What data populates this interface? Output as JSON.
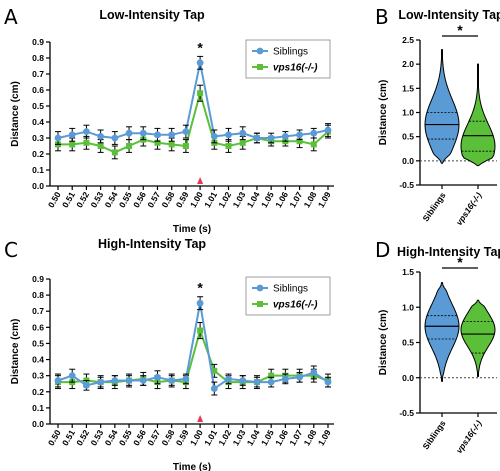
{
  "colors": {
    "siblings": "#5b9bd5",
    "mutant": "#5bbf3a",
    "marker": "#e8384f"
  },
  "chart_data": [
    {
      "panel": "A",
      "type": "line",
      "title": "Low-Intensity Tap",
      "xlabel": "Time (s)",
      "ylabel": "Distance (cm)",
      "ylim": [
        0,
        0.9
      ],
      "yticks": [
        "0.0",
        "0.1",
        "0.2",
        "0.3",
        "0.4",
        "0.5",
        "0.6",
        "0.7",
        "0.8",
        "0.9"
      ],
      "categories": [
        "0.50",
        "0.51",
        "0.52",
        "0.53",
        "0.54",
        "0.55",
        "0.56",
        "0.57",
        "0.58",
        "0.59",
        "1.00",
        "1.01",
        "1.02",
        "1.03",
        "1.04",
        "1.05",
        "1.06",
        "1.07",
        "1.08",
        "1.09"
      ],
      "series": [
        {
          "name": "Siblings",
          "values": [
            0.3,
            0.32,
            0.34,
            0.31,
            0.3,
            0.33,
            0.33,
            0.32,
            0.32,
            0.34,
            0.77,
            0.31,
            0.32,
            0.33,
            0.3,
            0.3,
            0.31,
            0.32,
            0.33,
            0.35
          ],
          "errors": [
            0.04,
            0.04,
            0.04,
            0.04,
            0.04,
            0.04,
            0.04,
            0.04,
            0.04,
            0.04,
            0.04,
            0.04,
            0.04,
            0.04,
            0.03,
            0.03,
            0.03,
            0.03,
            0.03,
            0.04
          ]
        },
        {
          "name": "vps16(-/-)",
          "values": [
            0.26,
            0.26,
            0.27,
            0.25,
            0.21,
            0.25,
            0.29,
            0.27,
            0.26,
            0.25,
            0.58,
            0.27,
            0.25,
            0.27,
            0.3,
            0.28,
            0.28,
            0.28,
            0.26,
            0.34
          ],
          "errors": [
            0.04,
            0.04,
            0.04,
            0.04,
            0.04,
            0.04,
            0.04,
            0.04,
            0.04,
            0.04,
            0.05,
            0.04,
            0.04,
            0.04,
            0.03,
            0.03,
            0.03,
            0.04,
            0.04,
            0.04
          ]
        }
      ],
      "annotation": "*",
      "grid": false,
      "legend_position": "top-right"
    },
    {
      "panel": "B",
      "type": "violin",
      "title": "Low-Intensity Tap",
      "ylabel": "Distance (cm)",
      "ylim": [
        -0.5,
        2.5
      ],
      "yticks": [
        "-0.5",
        "0.0",
        "0.5",
        "1.0",
        "1.5",
        "2.0",
        "2.5"
      ],
      "categories": [
        "Siblings",
        "vps16(-/-)"
      ],
      "distributions": [
        {
          "min": -0.05,
          "max": 2.3,
          "median": 0.75,
          "q1": 0.45,
          "q3": 1.0,
          "peak": 0.75
        },
        {
          "min": -0.1,
          "max": 2.0,
          "median": 0.52,
          "q1": 0.2,
          "q3": 0.82,
          "peak": 0.3
        }
      ],
      "annotation": "*"
    },
    {
      "panel": "C",
      "type": "line",
      "title": "High-Intensity Tap",
      "xlabel": "Time (s)",
      "ylabel": "Distance (cm)",
      "ylim": [
        0,
        0.9
      ],
      "yticks": [
        "0.0",
        "0.1",
        "0.2",
        "0.3",
        "0.4",
        "0.5",
        "0.6",
        "0.7",
        "0.8",
        "0.9"
      ],
      "categories": [
        "0.50",
        "0.51",
        "0.52",
        "0.53",
        "0.54",
        "0.55",
        "0.56",
        "0.57",
        "0.58",
        "0.59",
        "1.00",
        "1.01",
        "1.02",
        "1.03",
        "1.04",
        "1.05",
        "1.06",
        "1.07",
        "1.08",
        "1.09"
      ],
      "series": [
        {
          "name": "Siblings",
          "values": [
            0.27,
            0.3,
            0.24,
            0.26,
            0.27,
            0.27,
            0.27,
            0.29,
            0.27,
            0.28,
            0.75,
            0.22,
            0.28,
            0.27,
            0.26,
            0.26,
            0.28,
            0.29,
            0.32,
            0.26
          ],
          "errors": [
            0.04,
            0.04,
            0.03,
            0.03,
            0.03,
            0.03,
            0.03,
            0.04,
            0.03,
            0.03,
            0.04,
            0.04,
            0.03,
            0.03,
            0.03,
            0.03,
            0.03,
            0.03,
            0.04,
            0.03
          ]
        },
        {
          "name": "vps16(-/-)",
          "values": [
            0.26,
            0.26,
            0.27,
            0.26,
            0.26,
            0.27,
            0.28,
            0.26,
            0.27,
            0.26,
            0.58,
            0.33,
            0.26,
            0.26,
            0.26,
            0.3,
            0.3,
            0.3,
            0.3,
            0.27
          ],
          "errors": [
            0.04,
            0.04,
            0.04,
            0.04,
            0.04,
            0.04,
            0.04,
            0.04,
            0.04,
            0.04,
            0.05,
            0.04,
            0.04,
            0.04,
            0.04,
            0.04,
            0.04,
            0.04,
            0.04,
            0.04
          ]
        }
      ],
      "annotation": "*",
      "grid": false,
      "legend_position": "top-right"
    },
    {
      "panel": "D",
      "type": "violin",
      "title": "High-Intensity Tap",
      "ylabel": "Distance (cm)",
      "ylim": [
        -0.5,
        1.5
      ],
      "yticks": [
        "-0.5",
        "0.0",
        "0.5",
        "1.0",
        "1.5"
      ],
      "categories": [
        "Siblings",
        "vps16(-/-)"
      ],
      "distributions": [
        {
          "min": -0.05,
          "max": 1.35,
          "median": 0.73,
          "q1": 0.55,
          "q3": 0.88,
          "peak": 0.73
        },
        {
          "min": 0.02,
          "max": 1.1,
          "median": 0.62,
          "q1": 0.35,
          "q3": 0.8,
          "peak": 0.68
        }
      ],
      "annotation": "*"
    }
  ]
}
